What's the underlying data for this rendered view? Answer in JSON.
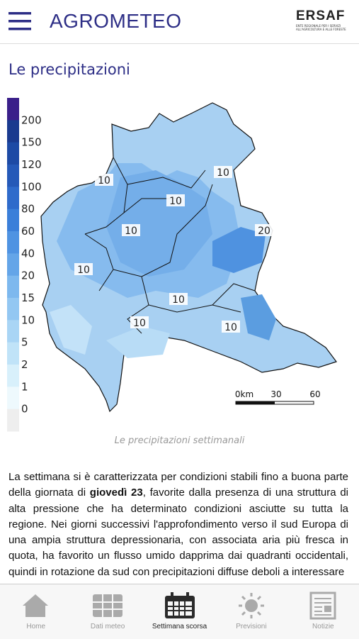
{
  "header": {
    "title": "AGROMETEO",
    "logo": {
      "name": "ERSAF",
      "subtitle": "ENTE REGIONALE PER I SERVIZI ALL'AGRICOLTURA E ALLE FORESTE"
    }
  },
  "section_title": "Le precipitazioni",
  "legend": {
    "labels": [
      "200",
      "150",
      "120",
      "100",
      "80",
      "60",
      "40",
      "20",
      "15",
      "10",
      "5",
      "2",
      "1",
      "0"
    ]
  },
  "map": {
    "contour_labels": [
      "10",
      "10",
      "10",
      "10",
      "10",
      "10",
      "10",
      "10",
      "20"
    ],
    "scale": {
      "labels": [
        "0km",
        "30",
        "60"
      ]
    }
  },
  "caption": "Le precipitazioni settimanali",
  "paragraph": {
    "parts": [
      "La settimana si è caratterizzata per condizioni stabili fino a buona parte della giornata di ",
      "giovedì 23",
      ", favorite dalla presenza di una struttura di alta pressione che ha determinato condizioni asciutte su tutta la regione. Nei giorni successivi l'approfondimento verso il sud Europa di una ampia struttura depressionaria, con associata aria più fresca in quota, ha favorito un flusso umido dapprima dai quadranti occidentali, quindi in rotazione da sud con precipitazioni diffuse deboli a interessare"
    ]
  },
  "tabs": [
    "Home",
    "Dati meteo",
    "Settimana scorsa",
    "Previsioni",
    "Notizie"
  ]
}
